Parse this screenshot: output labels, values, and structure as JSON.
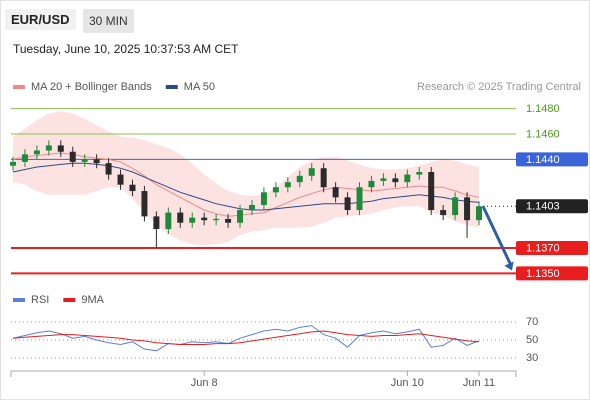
{
  "header": {
    "symbol": "EUR/USD",
    "interval": "30 MIN",
    "timestamp": "Tuesday, June 10, 2025 10:37:53 AM CET"
  },
  "chart_data": [
    {
      "type": "candlestick",
      "annotation": "Research © 2025 Trading Central",
      "categories": [
        null,
        null,
        null,
        null,
        null,
        null,
        null,
        null,
        null,
        null,
        null,
        null,
        null,
        null,
        null,
        null,
        "Jun 8",
        null,
        null,
        null,
        null,
        null,
        null,
        null,
        null,
        null,
        null,
        null,
        null,
        null,
        null,
        null,
        null,
        "Jun 10",
        null,
        null,
        null,
        null,
        null,
        "Jun 11"
      ],
      "open": [
        1.1435,
        1.1438,
        1.1444,
        1.1447,
        1.1451,
        1.1446,
        1.1438,
        1.144,
        1.1437,
        1.1428,
        1.142,
        1.1415,
        1.1395,
        1.1385,
        1.1398,
        1.139,
        1.1394,
        1.1392,
        1.1393,
        1.139,
        1.14,
        1.1404,
        1.1414,
        1.1418,
        1.1422,
        1.1427,
        1.1433,
        1.1418,
        1.141,
        1.14,
        1.1418,
        1.1423,
        1.1425,
        1.1422,
        1.1428,
        1.143,
        1.14,
        1.1396,
        1.141,
        1.1392
      ],
      "high": [
        1.1442,
        1.1448,
        1.1451,
        1.1455,
        1.1455,
        1.145,
        1.1444,
        1.1444,
        1.1441,
        1.1432,
        1.1424,
        1.1419,
        1.1399,
        1.1402,
        1.1402,
        1.1398,
        1.1398,
        1.1397,
        1.1397,
        1.1404,
        1.1408,
        1.1418,
        1.1422,
        1.1426,
        1.1431,
        1.1437,
        1.1437,
        1.1422,
        1.1414,
        1.1422,
        1.1427,
        1.1429,
        1.1429,
        1.1432,
        1.1434,
        1.1434,
        1.1404,
        1.1414,
        1.1414,
        1.1407
      ],
      "low": [
        1.1431,
        1.1434,
        1.144,
        1.1443,
        1.1442,
        1.1434,
        1.1434,
        1.1433,
        1.1424,
        1.1416,
        1.1411,
        1.1391,
        1.137,
        1.1381,
        1.1386,
        1.1386,
        1.1388,
        1.1388,
        1.1386,
        1.1386,
        1.1396,
        1.14,
        1.141,
        1.1414,
        1.1418,
        1.1423,
        1.1414,
        1.1406,
        1.1396,
        1.1396,
        1.1414,
        1.1419,
        1.1418,
        1.1418,
        1.1424,
        1.1396,
        1.1392,
        1.1392,
        1.1378,
        1.1388
      ],
      "close": [
        1.1438,
        1.1444,
        1.1447,
        1.1451,
        1.1446,
        1.1438,
        1.144,
        1.1437,
        1.1428,
        1.142,
        1.1415,
        1.1395,
        1.1385,
        1.1398,
        1.139,
        1.1394,
        1.1392,
        1.1393,
        1.139,
        1.14,
        1.1404,
        1.1414,
        1.1418,
        1.1422,
        1.1427,
        1.1433,
        1.1418,
        1.141,
        1.14,
        1.1418,
        1.1423,
        1.1425,
        1.1422,
        1.1428,
        1.143,
        1.14,
        1.1396,
        1.141,
        1.1392,
        1.1403
      ],
      "up_color": "#1f8a3a",
      "down_color": "#2b2b2b",
      "series": [
        {
          "name": "MA 20 + Bollinger Bands",
          "color": "#f08a8a",
          "values": [
            1.144,
            1.1442,
            1.1443,
            1.1444,
            1.1445,
            1.1444,
            1.1442,
            1.1441,
            1.144,
            1.1438,
            1.1433,
            1.1427,
            1.142,
            1.1415,
            1.141,
            1.1405,
            1.14,
            1.1397,
            1.1395,
            1.1396,
            1.1397,
            1.1398,
            1.1402,
            1.1406,
            1.141,
            1.1413,
            1.1416,
            1.1418,
            1.1417,
            1.1416,
            1.1415,
            1.1416,
            1.1417,
            1.1418,
            1.1419,
            1.1418,
            1.1418,
            1.1415,
            1.1412,
            1.141
          ]
        },
        {
          "name": "MA 50",
          "color": "#2c4a8a",
          "values": [
            1.143,
            1.1432,
            1.1434,
            1.1435,
            1.1436,
            1.1437,
            1.1437,
            1.1436,
            1.1435,
            1.1433,
            1.143,
            1.1426,
            1.1422,
            1.1418,
            1.1414,
            1.1411,
            1.1408,
            1.1405,
            1.1403,
            1.1401,
            1.14,
            1.14,
            1.1401,
            1.1402,
            1.1403,
            1.1404,
            1.1405,
            1.1405,
            1.1405,
            1.1406,
            1.1407,
            1.1409,
            1.141,
            1.1411,
            1.1412,
            1.1411,
            1.141,
            1.1408,
            1.1407,
            1.1406
          ]
        }
      ],
      "bands": {
        "color": "#fde2e2",
        "upper": [
          1.1458,
          1.1464,
          1.1471,
          1.1476,
          1.1478,
          1.1476,
          1.1472,
          1.1467,
          1.1462,
          1.1458,
          1.1457,
          1.1455,
          1.1452,
          1.1449,
          1.1444,
          1.1437,
          1.1428,
          1.1421,
          1.1415,
          1.1412,
          1.1411,
          1.1412,
          1.1418,
          1.1426,
          1.1434,
          1.1439,
          1.1442,
          1.1442,
          1.1439,
          1.1436,
          1.1433,
          1.1432,
          1.1432,
          1.1433,
          1.1435,
          1.1438,
          1.144,
          1.1439,
          1.1436,
          1.1434
        ],
        "lower": [
          1.1422,
          1.142,
          1.1415,
          1.1412,
          1.1412,
          1.1412,
          1.1412,
          1.1415,
          1.1418,
          1.1418,
          1.1409,
          1.1399,
          1.1388,
          1.1381,
          1.1376,
          1.1373,
          1.1372,
          1.1373,
          1.1375,
          1.138,
          1.1383,
          1.1384,
          1.1386,
          1.1386,
          1.1386,
          1.1387,
          1.139,
          1.1394,
          1.1395,
          1.1396,
          1.1397,
          1.14,
          1.1402,
          1.1403,
          1.1403,
          1.1398,
          1.1396,
          1.1391,
          1.1388,
          1.1386
        ]
      },
      "levels": [
        {
          "value": 1.148,
          "label": "1.1480",
          "color": "#8cc152",
          "boxed": false,
          "width": 1
        },
        {
          "value": 1.146,
          "label": "1.1460",
          "color": "#8cc152",
          "boxed": false,
          "width": 1
        },
        {
          "value": 1.144,
          "label": "1.1440",
          "color": "#3a64d8",
          "boxed": true,
          "width": 1
        },
        {
          "value": 1.1403,
          "color": "#222222",
          "boxed": true,
          "width": 1,
          "dotted": true
        },
        {
          "value": 1.137,
          "label": "1.1370",
          "color": "#e81d1d",
          "boxed": true,
          "width": 2
        },
        {
          "value": 1.135,
          "label": "1.1350",
          "color": "#e81d1d",
          "boxed": true,
          "width": 2
        }
      ],
      "arrow_color": "#2d5ea8",
      "ylim": [
        1.1344,
        1.149
      ]
    },
    {
      "type": "line",
      "series": [
        {
          "name": "RSI",
          "color": "#5b80d8",
          "values": [
            52,
            55,
            58,
            60,
            57,
            52,
            54,
            50,
            47,
            45,
            48,
            40,
            38,
            46,
            45,
            48,
            47,
            48,
            46,
            52,
            56,
            60,
            62,
            60,
            64,
            66,
            56,
            52,
            42,
            55,
            58,
            60,
            57,
            59,
            62,
            42,
            44,
            52,
            44,
            49
          ]
        },
        {
          "name": "9MA",
          "color": "#e02020",
          "values": [
            52,
            53,
            54,
            55,
            56,
            56,
            55,
            54,
            53,
            52,
            50,
            49,
            47,
            46,
            45,
            45,
            45,
            46,
            46,
            47,
            49,
            51,
            53,
            55,
            57,
            59,
            60,
            58,
            56,
            55,
            54,
            55,
            55,
            56,
            57,
            55,
            53,
            51,
            49,
            48
          ]
        }
      ],
      "ylim": [
        20,
        80
      ],
      "yticks": [
        30,
        50,
        70
      ],
      "grid": true
    }
  ]
}
